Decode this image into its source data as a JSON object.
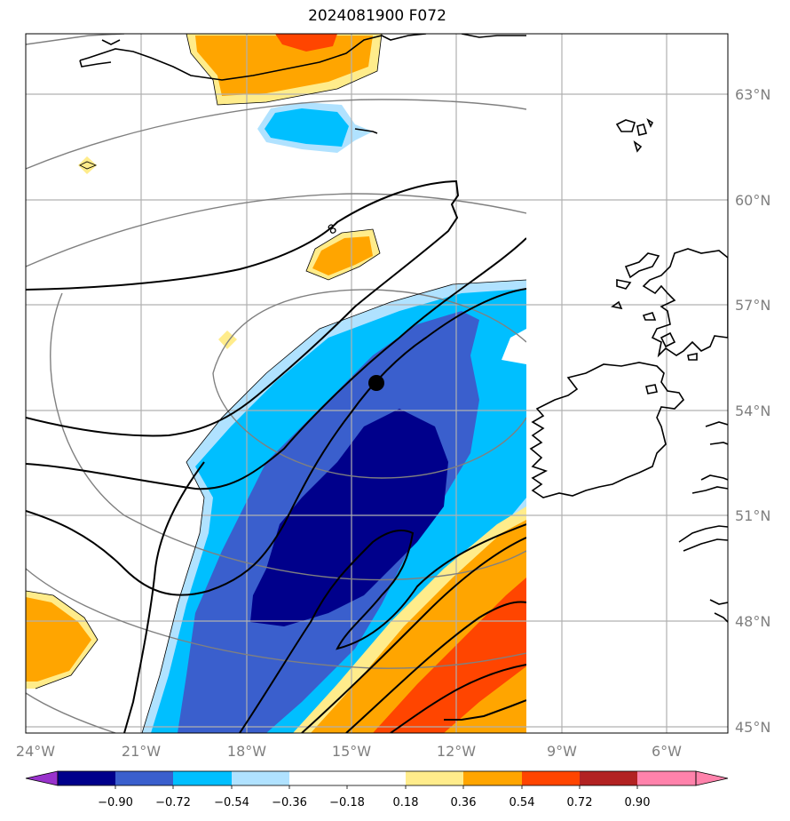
{
  "title": "2024081900 F072",
  "lon_labels": [
    "24°W",
    "21°W",
    "18°W",
    "15°W",
    "12°W",
    "9°W",
    "6°W"
  ],
  "lat_labels": [
    "63°N",
    "60°N",
    "57°N",
    "54°N",
    "51°N",
    "48°N",
    "45°N"
  ],
  "contour_label": "8",
  "colorbar": {
    "ticks": [
      "−0.90",
      "−0.72",
      "−0.54",
      "−0.36",
      "−0.18",
      "0.18",
      "0.36",
      "0.54",
      "0.72",
      "0.90"
    ],
    "colors": [
      "#9932cc",
      "#00008b",
      "#3a5fcd",
      "#00bfff",
      "#b0e2ff",
      "#ffffff",
      "#ffec8b",
      "#ffa500",
      "#ff4500",
      "#b22222",
      "#ff82ab"
    ]
  },
  "colors": {
    "grid": "#b0b0b0",
    "contour_black": "#000000",
    "contour_gray": "#808080"
  }
}
